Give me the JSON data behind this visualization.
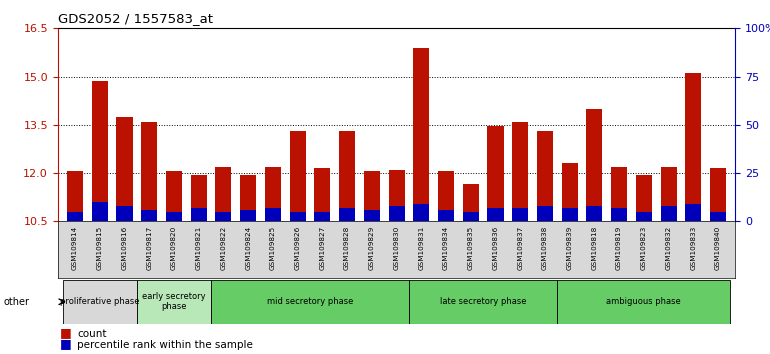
{
  "title": "GDS2052 / 1557583_at",
  "samples": [
    "GSM109814",
    "GSM109815",
    "GSM109816",
    "GSM109817",
    "GSM109820",
    "GSM109821",
    "GSM109822",
    "GSM109824",
    "GSM109825",
    "GSM109826",
    "GSM109827",
    "GSM109828",
    "GSM109829",
    "GSM109830",
    "GSM109831",
    "GSM109834",
    "GSM109835",
    "GSM109836",
    "GSM109837",
    "GSM109838",
    "GSM109839",
    "GSM109818",
    "GSM109819",
    "GSM109823",
    "GSM109832",
    "GSM109833",
    "GSM109840"
  ],
  "count_values": [
    12.05,
    14.85,
    13.75,
    13.6,
    12.05,
    11.95,
    12.2,
    11.95,
    12.2,
    13.3,
    12.15,
    13.3,
    12.05,
    12.1,
    15.9,
    12.05,
    11.65,
    13.45,
    13.6,
    13.3,
    12.3,
    14.0,
    12.2,
    11.95,
    12.2,
    15.1,
    12.15
  ],
  "percentile_values": [
    5,
    10,
    8,
    6,
    5,
    7,
    5,
    6,
    7,
    5,
    5,
    7,
    6,
    8,
    9,
    6,
    5,
    7,
    7,
    8,
    7,
    8,
    7,
    5,
    8,
    9,
    5
  ],
  "ymin": 10.5,
  "ymax": 16.5,
  "yticks_left": [
    10.5,
    12.0,
    13.5,
    15.0,
    16.5
  ],
  "yticks_right_vals": [
    0,
    25,
    50,
    75,
    100
  ],
  "bar_color_red": "#BB1100",
  "bar_color_blue": "#0000BB",
  "bg_color": "#ffffff",
  "label_bg_color": "#d8d8d8",
  "phase_grey_color": "#d8d8d8",
  "phase_green_light": "#b8e8b8",
  "phase_green_bright": "#66cc66",
  "phases": [
    {
      "label": "proliferative phase",
      "start": 0,
      "end": 3,
      "color_key": "grey"
    },
    {
      "label": "early secretory\nphase",
      "start": 3,
      "end": 6,
      "color_key": "light_green"
    },
    {
      "label": "mid secretory phase",
      "start": 6,
      "end": 14,
      "color_key": "bright_green"
    },
    {
      "label": "late secretory phase",
      "start": 14,
      "end": 20,
      "color_key": "bright_green"
    },
    {
      "label": "ambiguous phase",
      "start": 20,
      "end": 27,
      "color_key": "bright_green"
    }
  ],
  "other_label": "other",
  "legend_count": "count",
  "legend_percentile": "percentile rank within the sample",
  "n_bars": 27
}
